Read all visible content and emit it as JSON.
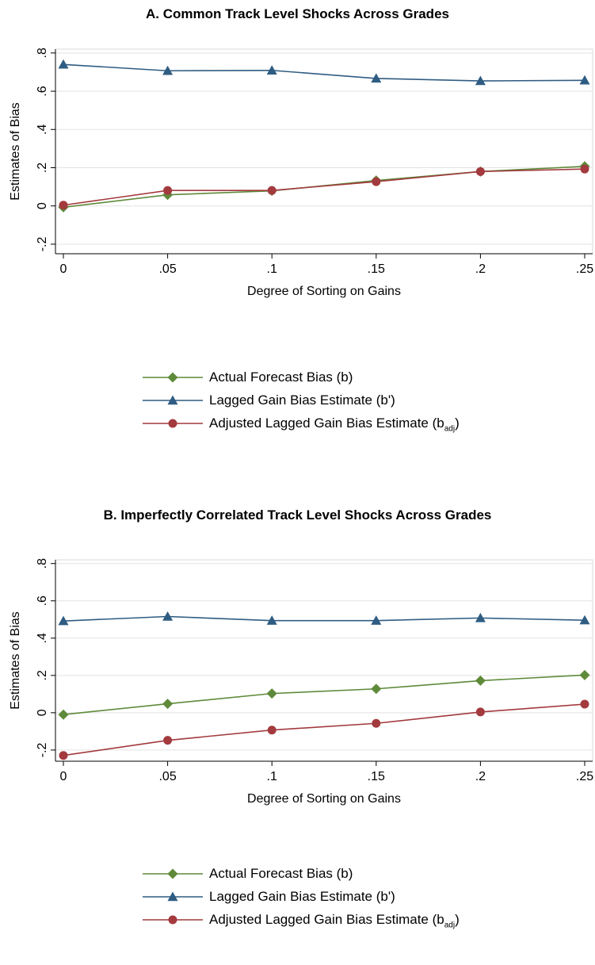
{
  "chart_data": [
    {
      "type": "line",
      "title": "A. Common Track Level Shocks Across Grades",
      "xlabel": "Degree of Sorting on Gains",
      "ylabel": "Estimates of Bias",
      "x": [
        0,
        0.05,
        0.1,
        0.15,
        0.2,
        0.25
      ],
      "x_tick_labels": [
        "0",
        ".05",
        ".1",
        ".15",
        ".2",
        ".25"
      ],
      "y_ticks": [
        -0.2,
        0,
        0.2,
        0.4,
        0.6,
        0.8
      ],
      "y_tick_labels": [
        "-.2",
        "0",
        ".2",
        ".4",
        ".6",
        ".8"
      ],
      "ylim": [
        -0.25,
        0.82
      ],
      "grid": true,
      "legend_position": "bottom",
      "series": [
        {
          "name": "Actual Forecast Bias (b)",
          "marker": "diamond",
          "color": "#5e8a3a",
          "values": [
            -0.007,
            0.058,
            0.079,
            0.133,
            0.18,
            0.207
          ]
        },
        {
          "name": "Lagged Gain Bias Estimate (b')",
          "marker": "triangle",
          "color": "#2f5c82",
          "values": [
            0.74,
            0.707,
            0.709,
            0.667,
            0.654,
            0.657
          ]
        },
        {
          "name": "Adjusted Lagged Gain Bias Estimate (b",
          "name_sub": "adj",
          "name_suffix": ")",
          "marker": "circle",
          "color": "#a33a3e",
          "values": [
            0.004,
            0.081,
            0.081,
            0.127,
            0.18,
            0.193
          ]
        }
      ]
    },
    {
      "type": "line",
      "title": "B. Imperfectly Correlated Track Level Shocks Across Grades",
      "xlabel": "Degree of Sorting on Gains",
      "ylabel": "Estimates of Bias",
      "x": [
        0,
        0.05,
        0.1,
        0.15,
        0.2,
        0.25
      ],
      "x_tick_labels": [
        "0",
        ".05",
        ".1",
        ".15",
        ".2",
        ".25"
      ],
      "y_ticks": [
        -0.2,
        0,
        0.2,
        0.4,
        0.6,
        0.8
      ],
      "y_tick_labels": [
        "-.2",
        "0",
        ".2",
        ".4",
        ".6",
        ".8"
      ],
      "ylim": [
        -0.26,
        0.82
      ],
      "grid": true,
      "legend_position": "bottom",
      "series": [
        {
          "name": "Actual Forecast Bias (b)",
          "marker": "diamond",
          "color": "#5e8a3a",
          "values": [
            -0.01,
            0.048,
            0.103,
            0.128,
            0.172,
            0.202
          ]
        },
        {
          "name": "Lagged Gain Bias Estimate (b')",
          "marker": "triangle",
          "color": "#2f5c82",
          "values": [
            0.492,
            0.516,
            0.494,
            0.494,
            0.508,
            0.496
          ]
        },
        {
          "name": "Adjusted Lagged Gain Bias Estimate (b",
          "name_sub": "adj",
          "name_suffix": ")",
          "marker": "circle",
          "color": "#a33a3e",
          "values": [
            -0.229,
            -0.148,
            -0.093,
            -0.057,
            0.004,
            0.046
          ]
        }
      ]
    }
  ]
}
